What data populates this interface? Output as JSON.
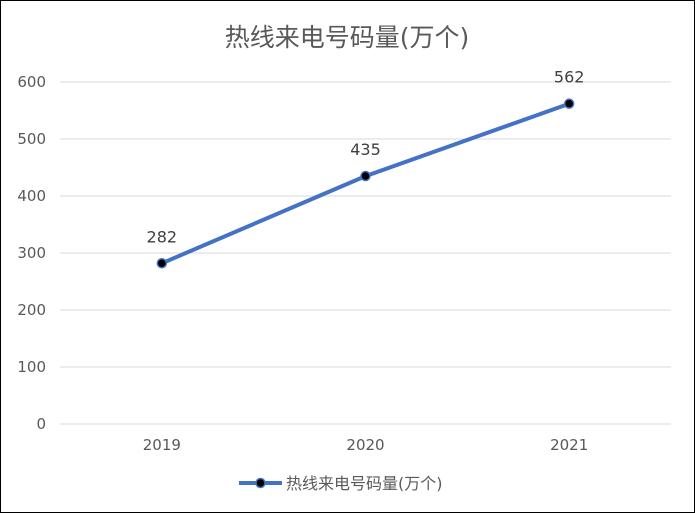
{
  "chart_data": {
    "type": "line",
    "title": "热线来电号码量(万个)",
    "categories": [
      "2019",
      "2020",
      "2021"
    ],
    "series": [
      {
        "name": "热线来电号码量(万个)",
        "values": [
          282,
          435,
          562
        ],
        "color": "#4472C4",
        "marker_color": "#000000"
      }
    ],
    "ylim": [
      0,
      600
    ],
    "yticks": [
      0,
      100,
      200,
      300,
      400,
      500,
      600
    ],
    "xlabel": "",
    "ylabel": "",
    "grid": true,
    "legend_position": "bottom",
    "data_labels": true
  }
}
